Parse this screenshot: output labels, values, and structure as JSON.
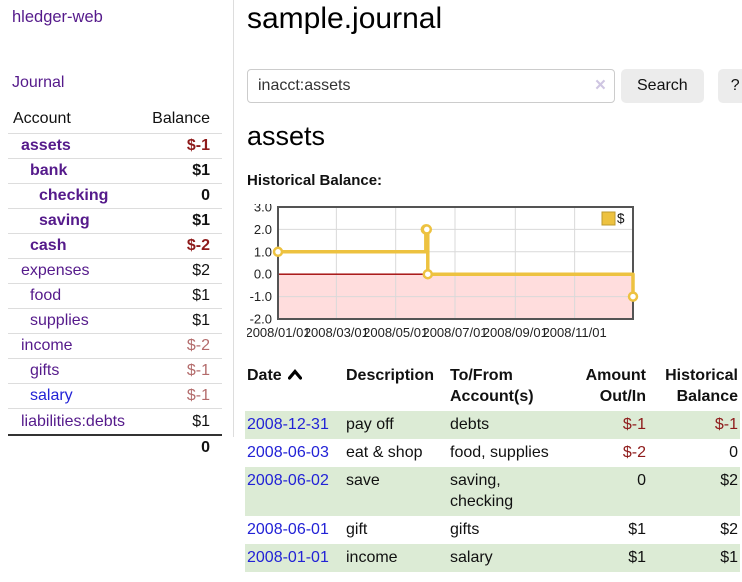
{
  "app": {
    "title": "hledger-web"
  },
  "nav": {
    "journal_label": "Journal"
  },
  "sidebar": {
    "headers": {
      "account": "Account",
      "balance": "Balance"
    },
    "rows": [
      {
        "account": "assets",
        "balance": "$-1",
        "indent": 1,
        "bold": true,
        "balance_style": "negative"
      },
      {
        "account": "bank",
        "balance": "$1",
        "indent": 2,
        "bold": true,
        "balance_style": "normal"
      },
      {
        "account": "checking",
        "balance": "0",
        "indent": 3,
        "bold": true,
        "balance_style": "normal"
      },
      {
        "account": "saving",
        "balance": "$1",
        "indent": 3,
        "bold": true,
        "balance_style": "normal"
      },
      {
        "account": "cash",
        "balance": "$-2",
        "indent": 2,
        "bold": true,
        "balance_style": "negative"
      },
      {
        "account": "expenses",
        "balance": "$2",
        "indent": 1,
        "bold": false,
        "balance_style": "normal"
      },
      {
        "account": "food",
        "balance": "$1",
        "indent": 2,
        "bold": false,
        "balance_style": "normal"
      },
      {
        "account": "supplies",
        "balance": "$1",
        "indent": 2,
        "bold": false,
        "balance_style": "normal"
      },
      {
        "account": "income",
        "balance": "$-2",
        "indent": 1,
        "bold": false,
        "balance_style": "negative-muted"
      },
      {
        "account": "gifts",
        "balance": "$-1",
        "indent": 2,
        "bold": false,
        "balance_style": "negative-muted"
      },
      {
        "account": "salary",
        "balance": "$-1",
        "indent": 2,
        "bold": false,
        "balance_style": "negative-muted",
        "link_style": "unvisited-blue"
      },
      {
        "account": "liabilities:debts",
        "balance": "$1",
        "indent": 1,
        "bold": false,
        "balance_style": "normal"
      }
    ],
    "total_balance": "0"
  },
  "header": {
    "title": "sample.journal"
  },
  "search": {
    "value": "inacct:assets",
    "clear_icon": "×",
    "button_label": "Search",
    "help_button_label": "?"
  },
  "account_page": {
    "title": "assets",
    "chart_label": "Historical Balance:"
  },
  "chart_data": {
    "type": "line",
    "step": true,
    "title": "Historical Balance",
    "xlabel": "",
    "ylabel": "",
    "xlim": [
      "2008-01-01",
      "2008-12-31"
    ],
    "ylim": [
      -2,
      3
    ],
    "grid": true,
    "legend_position": "top-right",
    "series": [
      {
        "name": "$",
        "color": "#edc240",
        "points": [
          [
            "2008-01-01",
            1
          ],
          [
            "2008-06-01",
            2
          ],
          [
            "2008-06-02",
            2
          ],
          [
            "2008-06-03",
            0
          ],
          [
            "2008-12-31",
            -1
          ]
        ]
      }
    ],
    "x_ticks": [
      {
        "date": "2008-01-01",
        "label": "2008/01/01"
      },
      {
        "date": "2008-03-01",
        "label": "2008/03/01"
      },
      {
        "date": "2008-05-01",
        "label": "2008/05/01"
      },
      {
        "date": "2008-07-01",
        "label": "2008/07/01"
      },
      {
        "date": "2008-09-01",
        "label": "2008/09/01"
      },
      {
        "date": "2008-11-01",
        "label": "2008/11/01"
      }
    ],
    "y_ticks": [
      {
        "value": 3,
        "label": "3.0"
      },
      {
        "value": 2,
        "label": "2.0"
      },
      {
        "value": 1,
        "label": "1.0"
      },
      {
        "value": 0,
        "label": "0.0"
      },
      {
        "value": -1,
        "label": "-1.0"
      },
      {
        "value": -2,
        "label": "-2.0"
      }
    ],
    "negative_region_color": "#ffdddd",
    "zero_line_color": "#a00000"
  },
  "register": {
    "headers": {
      "date": "Date",
      "description": "Description",
      "accounts": "To/From\nAccount(s)",
      "amount": "Amount\nOut/In",
      "balance": "Historical\nBalance"
    },
    "sort_icon": "chevron-up",
    "rows": [
      {
        "date": "2008-12-31",
        "description": "pay off",
        "accounts": "debts",
        "amount": "$-1",
        "balance": "$-1"
      },
      {
        "date": "2008-06-03",
        "description": "eat & shop",
        "accounts": "food, supplies",
        "amount": "$-2",
        "balance": "0"
      },
      {
        "date": "2008-06-02",
        "description": "save",
        "accounts": "saving,\nchecking",
        "amount": "0",
        "balance": "$2"
      },
      {
        "date": "2008-06-01",
        "description": "gift",
        "accounts": "gifts",
        "amount": "$1",
        "balance": "$2"
      },
      {
        "date": "2008-01-01",
        "description": "income",
        "accounts": "salary",
        "amount": "$1",
        "balance": "$1"
      }
    ]
  },
  "colors": {
    "link_visited_purple": "#551a8b",
    "link_blue": "#2222d6",
    "negative_strong": "#8e1a1a",
    "negative_muted": "#b36b6b",
    "row_stripe_green": "#dcebd5",
    "chart_line_gold": "#edc240",
    "chart_negative_fill": "#ffdddd",
    "chart_zero_line": "#a00000",
    "button_gray": "#ececec"
  }
}
